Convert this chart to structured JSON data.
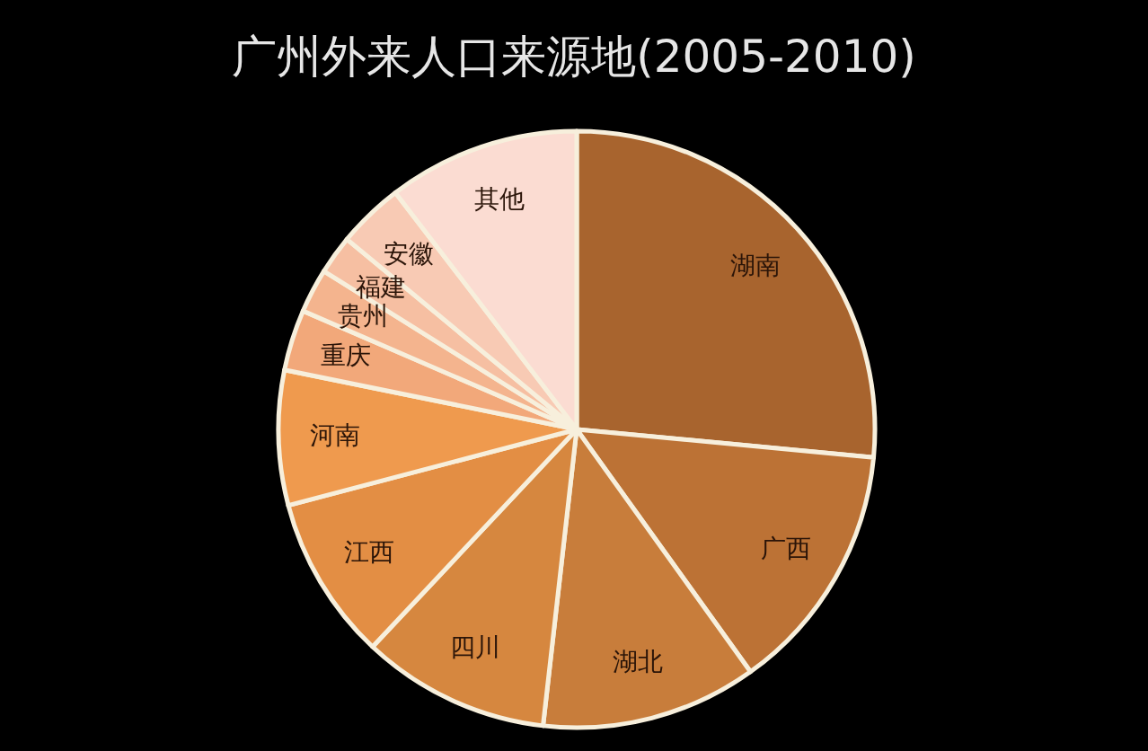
{
  "chart_data": {
    "type": "pie",
    "title": "广州外来人口来源地(2005-2010)",
    "categories": [
      "湖南",
      "广西",
      "湖北",
      "四川",
      "江西",
      "河南",
      "重庆",
      "贵州",
      "福建",
      "安徽",
      "其他"
    ],
    "values": [
      26.5,
      13.6,
      11.7,
      10.2,
      8.9,
      7.3,
      3.3,
      2.4,
      2.1,
      3.6,
      10.4
    ],
    "colors": [
      "#a8642e",
      "#bc7235",
      "#c87d3b",
      "#d6873f",
      "#e38e44",
      "#ef9a4e",
      "#f2a87a",
      "#f4b48e",
      "#f6bfa2",
      "#f8cab4",
      "#fbdcd2"
    ]
  }
}
